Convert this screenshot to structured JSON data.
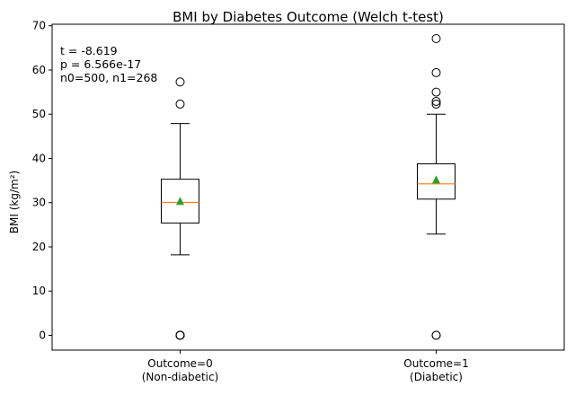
{
  "chart_data": {
    "type": "box",
    "title": "BMI by Diabetes Outcome (Welch t-test)",
    "xlabel": "",
    "ylabel": "BMI (kg/m²)",
    "ylim": [
      -3.35,
      70.35
    ],
    "yticks": [
      0,
      10,
      20,
      30,
      40,
      50,
      60,
      70
    ],
    "grid": false,
    "categories": [
      [
        "Outcome=0",
        "(Non-diabetic)"
      ],
      [
        "Outcome=1",
        "(Diabetic)"
      ]
    ],
    "boxes": [
      {
        "q1": 25.4,
        "median": 30.05,
        "q3": 35.3,
        "whisker_low": 18.2,
        "whisker_high": 47.9,
        "mean": 30.3,
        "outliers": [
          0,
          0,
          0,
          0,
          0,
          52.3,
          57.3
        ]
      },
      {
        "q1": 30.8,
        "median": 34.25,
        "q3": 38.78,
        "whisker_low": 22.9,
        "whisker_high": 50.0,
        "mean": 35.14,
        "outliers": [
          0,
          0,
          52.3,
          52.9,
          55.0,
          59.4,
          67.1
        ]
      }
    ],
    "annotation": [
      "t = -8.619",
      "p = 6.566e-17",
      "n0=500, n1=268"
    ],
    "colors": {
      "median": "#ff7f0e",
      "mean": "#2ca02c",
      "box": "#000000"
    }
  }
}
